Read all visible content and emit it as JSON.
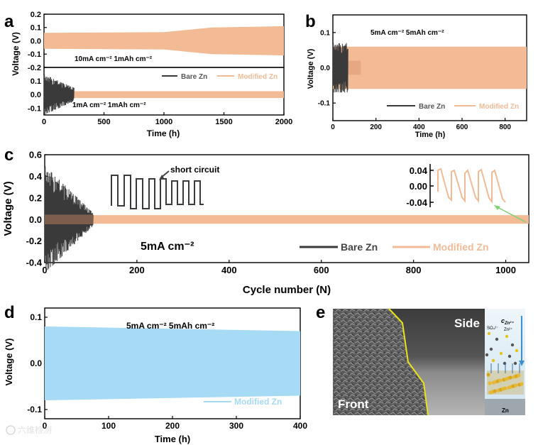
{
  "colors": {
    "bare": "#3a3a3a",
    "modified": "#f2bb96",
    "blue": "#a6daf5",
    "arrow_green": "#7bd36f",
    "interface_yellow": "#e9e21a"
  },
  "chart_data": [
    {
      "id": "a",
      "type": "line",
      "panel_label": "a",
      "ylabel": "Voltage (V)",
      "xlabel": "Time (h)",
      "xlim": [
        0,
        2000
      ],
      "xticks": [
        "0",
        "500",
        "1000",
        "1500",
        "2000"
      ],
      "subplots": [
        {
          "ylim": [
            -0.2,
            0.2
          ],
          "yticks": [
            "0.2",
            "0.1",
            "0.0",
            "-0.1",
            "-0.2"
          ],
          "annotation": "10mA cm⁻²  1mAh cm⁻²",
          "series": [
            {
              "name": "Modified Zn",
              "x": [
                0,
                1000,
                1400,
                2000
              ],
              "amplitude": [
                0.06,
                0.065,
                0.1,
                0.11
              ]
            }
          ]
        },
        {
          "ylim": [
            -0.15,
            0.2
          ],
          "yticks": [
            "0.1",
            "0.0",
            "-0.1"
          ],
          "annotation": "1mA cm⁻²  1mAh cm⁻²",
          "series": [
            {
              "name": "Bare Zn",
              "x": [
                0,
                250
              ],
              "amplitude": [
                0.15,
                0.05
              ]
            },
            {
              "name": "Modified Zn",
              "x": [
                0,
                2000
              ],
              "amplitude": [
                0.025,
                0.025
              ]
            }
          ]
        }
      ],
      "legend": [
        "Bare Zn",
        "Modified Zn"
      ]
    },
    {
      "id": "b",
      "type": "line",
      "panel_label": "b",
      "ylabel": "Voltage (V)",
      "xlabel": "Time (h)",
      "xlim": [
        0,
        900
      ],
      "xticks": [
        "0",
        "200",
        "400",
        "600",
        "800"
      ],
      "ylim": [
        -0.15,
        0.15
      ],
      "yticks": [
        "0.1",
        "0.0",
        "-0.1"
      ],
      "annotation": "5mA cm⁻²  5mAh cm⁻²",
      "series": [
        {
          "name": "Bare Zn",
          "x": [
            0,
            70
          ],
          "amplitude": [
            0.07,
            0.07
          ]
        },
        {
          "name": "Modified Zn",
          "x": [
            0,
            900
          ],
          "amplitude": [
            0.06,
            0.06
          ]
        }
      ],
      "legend": [
        "Bare Zn",
        "Modified Zn"
      ]
    },
    {
      "id": "c",
      "type": "line",
      "panel_label": "c",
      "ylabel": "Voltage (V)",
      "xlabel": "Cycle number (N)",
      "xlim": [
        0,
        1050
      ],
      "xticks": [
        "0",
        "200",
        "400",
        "600",
        "800",
        "1000"
      ],
      "ylim": [
        -0.4,
        0.6
      ],
      "yticks": [
        "0.6",
        "0.4",
        "0.2",
        "0.0",
        "-0.2",
        "-0.4"
      ],
      "annotation": "5mA cm⁻²",
      "inset_annotation": "short circuit",
      "inset_yticks": [
        "0.04",
        "0.00",
        "-0.04"
      ],
      "series": [
        {
          "name": "Bare Zn",
          "x": [
            0,
            105
          ],
          "amplitude": [
            0.5,
            0.06
          ]
        },
        {
          "name": "Modified Zn",
          "x": [
            0,
            1050
          ],
          "amplitude": [
            0.04,
            0.04
          ]
        }
      ],
      "legend": [
        "Bare Zn",
        "Modified Zn"
      ]
    },
    {
      "id": "d",
      "type": "line",
      "panel_label": "d",
      "ylabel": "Voltage (V)",
      "xlabel": "Time (h)",
      "xlim": [
        0,
        400
      ],
      "xticks": [
        "0",
        "100",
        "200",
        "300",
        "400"
      ],
      "ylim": [
        -0.12,
        0.12
      ],
      "yticks": [
        "0.1",
        "0.0",
        "-0.1"
      ],
      "annotation": "5mA cm⁻²  5mAh cm⁻²",
      "series": [
        {
          "name": "Modified Zn",
          "x": [
            0,
            400
          ],
          "amplitude": [
            0.08,
            0.07
          ]
        }
      ],
      "legend": [
        "Modified Zn"
      ]
    }
  ],
  "panel_e": {
    "label": "e",
    "front_label": "Front",
    "side_label": "Side",
    "schematic": {
      "concentration_label": "c",
      "concentration_sub": "Zn²⁺",
      "sulfate_label": "SO₄²⁻",
      "zinc_ion_label": "Zn²⁺",
      "substrate_label": "Zn"
    }
  },
  "watermark": "六维检测"
}
